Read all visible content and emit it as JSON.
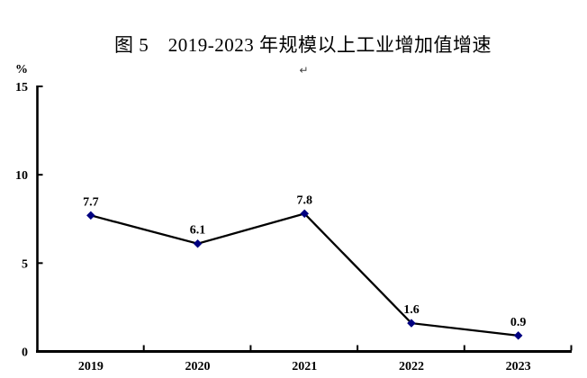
{
  "title": "图 5　2019-2023 年规模以上工业增加值增速",
  "paragraph_mark": "↵",
  "chart_data": {
    "type": "line",
    "title": "图 5　2019-2023 年规模以上工业增加值增速",
    "categories": [
      "2019",
      "2020",
      "2021",
      "2022",
      "2023"
    ],
    "values": [
      7.7,
      6.1,
      7.8,
      1.6,
      0.9
    ],
    "data_labels": [
      "7.7",
      "6.1",
      "7.8",
      "1.6",
      "0.9"
    ],
    "ylabel": "%",
    "ylim": [
      0,
      15
    ],
    "yticks": [
      0,
      5,
      10,
      15
    ],
    "grid": false,
    "legend": "none",
    "marker": "diamond",
    "colors": {
      "line": "#000000",
      "marker": "#000080",
      "text": "#000000"
    }
  }
}
